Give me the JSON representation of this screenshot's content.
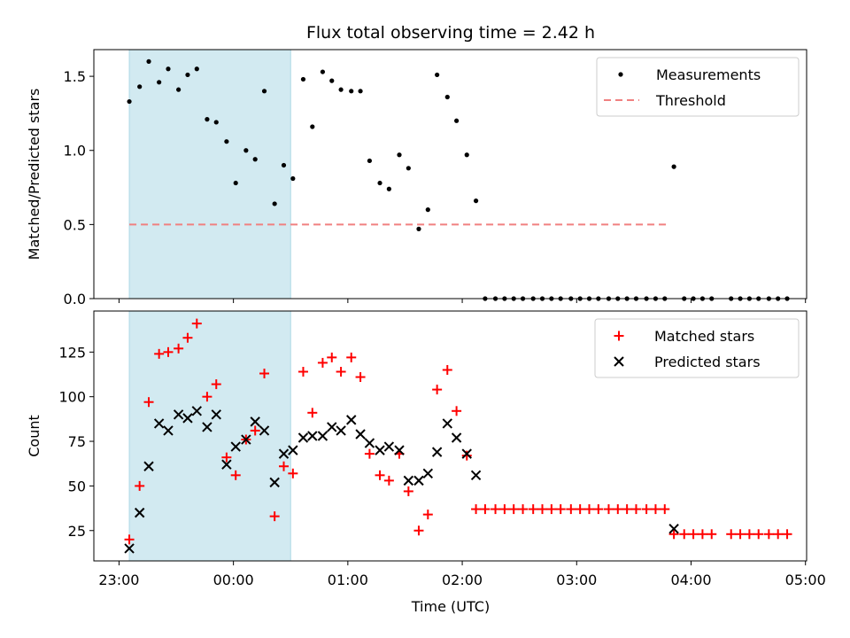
{
  "title": "Flux total observing time = 2.42 h",
  "colors": {
    "shade": "#add8e6",
    "measurement": "#000000",
    "threshold": "#f08080",
    "matched": "#ff0000",
    "predicted": "#000000"
  },
  "x_axis": {
    "label": "Time (UTC)",
    "ticks": [
      {
        "value": 0.0,
        "label": "23:00"
      },
      {
        "value": 1.0,
        "label": "00:00"
      },
      {
        "value": 2.0,
        "label": "01:00"
      },
      {
        "value": 3.0,
        "label": "02:00"
      },
      {
        "value": 4.0,
        "label": "03:00"
      },
      {
        "value": 5.0,
        "label": "04:00"
      },
      {
        "value": 6.0,
        "label": "05:00"
      }
    ]
  },
  "chart_data": [
    {
      "type": "scatter",
      "title": "Flux total observing time = 2.42 h",
      "xlabel": "",
      "ylabel": "Matched/Predicted stars",
      "xlim": [
        -0.22,
        6.01
      ],
      "ylim": [
        0,
        1.68
      ],
      "yticks": [
        0.0,
        0.5,
        1.0,
        1.5
      ],
      "ytick_labels": [
        "0.0",
        "0.5",
        "1.0",
        "1.5"
      ],
      "legend_position": "top-right",
      "legend": [
        "Measurements",
        "Threshold"
      ],
      "shaded_interval": [
        0.09,
        1.5
      ],
      "threshold": {
        "name": "Threshold",
        "y": 0.5,
        "x_start": 0.09,
        "x_end": 4.78
      },
      "series": [
        {
          "name": "Measurements",
          "marker": "dot",
          "points": [
            [
              0.09,
              1.33
            ],
            [
              0.18,
              1.43
            ],
            [
              0.26,
              1.6
            ],
            [
              0.35,
              1.46
            ],
            [
              0.43,
              1.55
            ],
            [
              0.52,
              1.41
            ],
            [
              0.6,
              1.51
            ],
            [
              0.68,
              1.55
            ],
            [
              0.77,
              1.21
            ],
            [
              0.85,
              1.19
            ],
            [
              0.94,
              1.06
            ],
            [
              1.02,
              0.78
            ],
            [
              1.11,
              1.0
            ],
            [
              1.19,
              0.94
            ],
            [
              1.27,
              1.4
            ],
            [
              1.36,
              0.64
            ],
            [
              1.44,
              0.9
            ],
            [
              1.52,
              0.81
            ],
            [
              1.61,
              1.48
            ],
            [
              1.69,
              1.16
            ],
            [
              1.78,
              1.53
            ],
            [
              1.86,
              1.47
            ],
            [
              1.94,
              1.41
            ],
            [
              2.03,
              1.4
            ],
            [
              2.11,
              1.4
            ],
            [
              2.19,
              0.93
            ],
            [
              2.28,
              0.78
            ],
            [
              2.36,
              0.74
            ],
            [
              2.45,
              0.97
            ],
            [
              2.53,
              0.88
            ],
            [
              2.62,
              0.47
            ],
            [
              2.7,
              0.6
            ],
            [
              2.78,
              1.51
            ],
            [
              2.87,
              1.36
            ],
            [
              2.95,
              1.2
            ],
            [
              3.04,
              0.97
            ],
            [
              3.12,
              0.66
            ],
            [
              3.2,
              0.0
            ],
            [
              3.29,
              0.0
            ],
            [
              3.37,
              0.0
            ],
            [
              3.45,
              0.0
            ],
            [
              3.53,
              0.0
            ],
            [
              3.62,
              0.0
            ],
            [
              3.7,
              0.0
            ],
            [
              3.78,
              0.0
            ],
            [
              3.86,
              0.0
            ],
            [
              3.95,
              0.0
            ],
            [
              4.03,
              0.0
            ],
            [
              4.11,
              0.0
            ],
            [
              4.19,
              0.0
            ],
            [
              4.28,
              0.0
            ],
            [
              4.36,
              0.0
            ],
            [
              4.44,
              0.0
            ],
            [
              4.52,
              0.0
            ],
            [
              4.61,
              0.0
            ],
            [
              4.69,
              0.0
            ],
            [
              4.77,
              0.0
            ],
            [
              4.85,
              0.89
            ],
            [
              4.94,
              0.0
            ],
            [
              5.02,
              0.0
            ],
            [
              5.1,
              0.0
            ],
            [
              5.18,
              0.0
            ],
            [
              5.35,
              0.0
            ],
            [
              5.43,
              0.0
            ],
            [
              5.51,
              0.0
            ],
            [
              5.59,
              0.0
            ],
            [
              5.68,
              0.0
            ],
            [
              5.76,
              0.0
            ],
            [
              5.84,
              0.0
            ]
          ]
        }
      ]
    },
    {
      "type": "scatter",
      "xlabel": "Time (UTC)",
      "ylabel": "Count",
      "xlim": [
        -0.22,
        6.01
      ],
      "ylim": [
        8,
        148
      ],
      "yticks": [
        25,
        50,
        75,
        100,
        125
      ],
      "ytick_labels": [
        "25",
        "50",
        "75",
        "100",
        "125"
      ],
      "legend_position": "top-right",
      "legend": [
        "Matched stars",
        "Predicted stars"
      ],
      "shaded_interval": [
        0.09,
        1.5
      ],
      "series": [
        {
          "name": "Matched stars",
          "marker": "plus",
          "points": [
            [
              0.09,
              20
            ],
            [
              0.18,
              50
            ],
            [
              0.26,
              97
            ],
            [
              0.35,
              124
            ],
            [
              0.43,
              125
            ],
            [
              0.52,
              127
            ],
            [
              0.6,
              133
            ],
            [
              0.68,
              141
            ],
            [
              0.77,
              100
            ],
            [
              0.85,
              107
            ],
            [
              0.94,
              66
            ],
            [
              1.02,
              56
            ],
            [
              1.11,
              76
            ],
            [
              1.19,
              81
            ],
            [
              1.27,
              113
            ],
            [
              1.36,
              33
            ],
            [
              1.44,
              61
            ],
            [
              1.52,
              57
            ],
            [
              1.61,
              114
            ],
            [
              1.69,
              91
            ],
            [
              1.78,
              119
            ],
            [
              1.86,
              122
            ],
            [
              1.94,
              114
            ],
            [
              2.03,
              122
            ],
            [
              2.11,
              111
            ],
            [
              2.19,
              68
            ],
            [
              2.28,
              56
            ],
            [
              2.36,
              53
            ],
            [
              2.45,
              68
            ],
            [
              2.53,
              47
            ],
            [
              2.62,
              25
            ],
            [
              2.7,
              34
            ],
            [
              2.78,
              104
            ],
            [
              2.87,
              115
            ],
            [
              2.95,
              92
            ],
            [
              3.04,
              67
            ],
            [
              3.12,
              37
            ],
            [
              3.2,
              37
            ],
            [
              3.29,
              37
            ],
            [
              3.37,
              37
            ],
            [
              3.45,
              37
            ],
            [
              3.53,
              37
            ],
            [
              3.62,
              37
            ],
            [
              3.7,
              37
            ],
            [
              3.78,
              37
            ],
            [
              3.86,
              37
            ],
            [
              3.95,
              37
            ],
            [
              4.03,
              37
            ],
            [
              4.11,
              37
            ],
            [
              4.19,
              37
            ],
            [
              4.28,
              37
            ],
            [
              4.36,
              37
            ],
            [
              4.44,
              37
            ],
            [
              4.52,
              37
            ],
            [
              4.61,
              37
            ],
            [
              4.69,
              37
            ],
            [
              4.77,
              37
            ],
            [
              4.85,
              23
            ],
            [
              4.94,
              23
            ],
            [
              5.02,
              23
            ],
            [
              5.1,
              23
            ],
            [
              5.18,
              23
            ],
            [
              5.35,
              23
            ],
            [
              5.43,
              23
            ],
            [
              5.51,
              23
            ],
            [
              5.59,
              23
            ],
            [
              5.68,
              23
            ],
            [
              5.76,
              23
            ],
            [
              5.84,
              23
            ]
          ]
        },
        {
          "name": "Predicted stars",
          "marker": "x",
          "points": [
            [
              0.09,
              15
            ],
            [
              0.18,
              35
            ],
            [
              0.26,
              61
            ],
            [
              0.35,
              85
            ],
            [
              0.43,
              81
            ],
            [
              0.52,
              90
            ],
            [
              0.6,
              88
            ],
            [
              0.68,
              92
            ],
            [
              0.77,
              83
            ],
            [
              0.85,
              90
            ],
            [
              0.94,
              62
            ],
            [
              1.02,
              72
            ],
            [
              1.11,
              76
            ],
            [
              1.19,
              86
            ],
            [
              1.27,
              81
            ],
            [
              1.36,
              52
            ],
            [
              1.44,
              68
            ],
            [
              1.52,
              70
            ],
            [
              1.61,
              77
            ],
            [
              1.69,
              78
            ],
            [
              1.78,
              78
            ],
            [
              1.86,
              83
            ],
            [
              1.94,
              81
            ],
            [
              2.03,
              87
            ],
            [
              2.11,
              79
            ],
            [
              2.19,
              74
            ],
            [
              2.28,
              70
            ],
            [
              2.36,
              72
            ],
            [
              2.45,
              70
            ],
            [
              2.53,
              53
            ],
            [
              2.62,
              53
            ],
            [
              2.7,
              57
            ],
            [
              2.78,
              69
            ],
            [
              2.87,
              85
            ],
            [
              2.95,
              77
            ],
            [
              3.04,
              68
            ],
            [
              3.12,
              56
            ],
            [
              4.85,
              26
            ]
          ]
        }
      ]
    }
  ]
}
